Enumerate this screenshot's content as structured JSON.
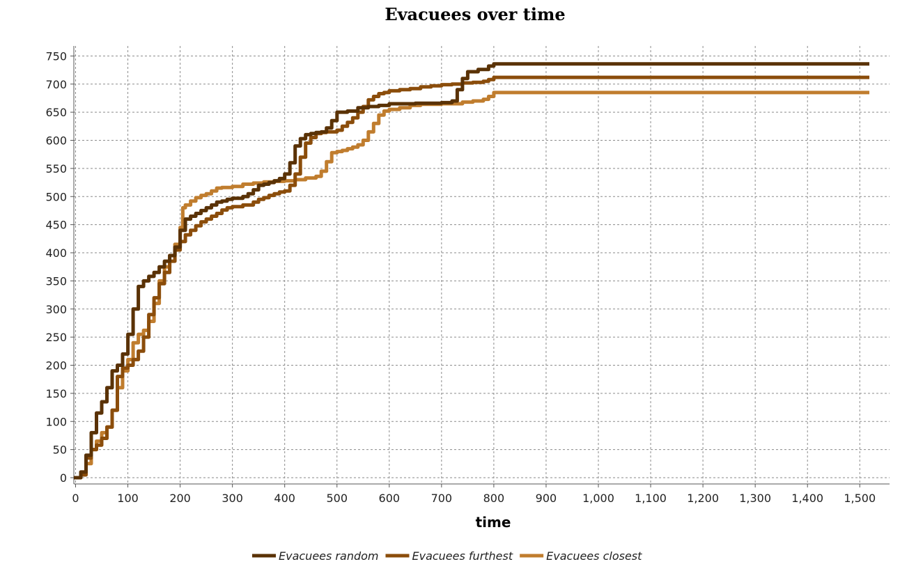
{
  "chart_data": {
    "type": "line",
    "title": "Evacuees over time",
    "xlabel": "time",
    "ylabel": "",
    "xlim": [
      0,
      1550
    ],
    "ylim": [
      0,
      750
    ],
    "grid": true,
    "legend_position": "bottom",
    "x_ticks": [
      {
        "value": 0,
        "label": "0"
      },
      {
        "value": 100,
        "label": "100"
      },
      {
        "value": 200,
        "label": "200"
      },
      {
        "value": 300,
        "label": "300"
      },
      {
        "value": 400,
        "label": "400"
      },
      {
        "value": 500,
        "label": "500"
      },
      {
        "value": 600,
        "label": "600"
      },
      {
        "value": 700,
        "label": "700"
      },
      {
        "value": 800,
        "label": "800"
      },
      {
        "value": 900,
        "label": "900"
      },
      {
        "value": 1000,
        "label": "1,000"
      },
      {
        "value": 1100,
        "label": "1,100"
      },
      {
        "value": 1200,
        "label": "1,200"
      },
      {
        "value": 1300,
        "label": "1,300"
      },
      {
        "value": 1400,
        "label": "1,400"
      },
      {
        "value": 1500,
        "label": "1,500"
      }
    ],
    "y_ticks": [
      {
        "value": 0,
        "label": "0"
      },
      {
        "value": 50,
        "label": "50"
      },
      {
        "value": 100,
        "label": "100"
      },
      {
        "value": 150,
        "label": "150"
      },
      {
        "value": 200,
        "label": "200"
      },
      {
        "value": 250,
        "label": "250"
      },
      {
        "value": 300,
        "label": "300"
      },
      {
        "value": 350,
        "label": "350"
      },
      {
        "value": 400,
        "label": "400"
      },
      {
        "value": 450,
        "label": "450"
      },
      {
        "value": 500,
        "label": "500"
      },
      {
        "value": 550,
        "label": "550"
      },
      {
        "value": 600,
        "label": "600"
      },
      {
        "value": 650,
        "label": "650"
      },
      {
        "value": 700,
        "label": "700"
      },
      {
        "value": 750,
        "label": "750"
      }
    ],
    "series": [
      {
        "name": "Evacuees random",
        "color": "#5a3206",
        "points": [
          [
            0,
            0
          ],
          [
            10,
            10
          ],
          [
            20,
            40
          ],
          [
            30,
            80
          ],
          [
            40,
            115
          ],
          [
            50,
            135
          ],
          [
            60,
            160
          ],
          [
            70,
            190
          ],
          [
            80,
            200
          ],
          [
            90,
            220
          ],
          [
            100,
            255
          ],
          [
            110,
            300
          ],
          [
            120,
            340
          ],
          [
            130,
            350
          ],
          [
            140,
            358
          ],
          [
            150,
            365
          ],
          [
            160,
            375
          ],
          [
            170,
            385
          ],
          [
            180,
            395
          ],
          [
            190,
            410
          ],
          [
            200,
            440
          ],
          [
            210,
            460
          ],
          [
            220,
            465
          ],
          [
            230,
            470
          ],
          [
            240,
            475
          ],
          [
            250,
            480
          ],
          [
            260,
            485
          ],
          [
            270,
            490
          ],
          [
            280,
            492
          ],
          [
            290,
            495
          ],
          [
            300,
            497
          ],
          [
            320,
            500
          ],
          [
            330,
            505
          ],
          [
            340,
            512
          ],
          [
            350,
            520
          ],
          [
            360,
            522
          ],
          [
            370,
            525
          ],
          [
            380,
            528
          ],
          [
            390,
            532
          ],
          [
            400,
            540
          ],
          [
            410,
            560
          ],
          [
            420,
            590
          ],
          [
            430,
            603
          ],
          [
            440,
            610
          ],
          [
            450,
            612
          ],
          [
            460,
            614
          ],
          [
            470,
            615
          ],
          [
            480,
            622
          ],
          [
            490,
            635
          ],
          [
            500,
            650
          ],
          [
            520,
            652
          ],
          [
            540,
            658
          ],
          [
            560,
            660
          ],
          [
            580,
            662
          ],
          [
            600,
            665
          ],
          [
            650,
            666
          ],
          [
            700,
            667
          ],
          [
            720,
            670
          ],
          [
            730,
            690
          ],
          [
            740,
            710
          ],
          [
            750,
            722
          ],
          [
            770,
            726
          ],
          [
            790,
            732
          ],
          [
            800,
            736
          ],
          [
            1515,
            736
          ]
        ]
      },
      {
        "name": "Evacuees furthest",
        "color": "#8b4d0b",
        "points": [
          [
            0,
            0
          ],
          [
            10,
            5
          ],
          [
            20,
            35
          ],
          [
            30,
            50
          ],
          [
            40,
            58
          ],
          [
            50,
            70
          ],
          [
            60,
            90
          ],
          [
            70,
            120
          ],
          [
            80,
            180
          ],
          [
            90,
            195
          ],
          [
            100,
            200
          ],
          [
            110,
            210
          ],
          [
            120,
            225
          ],
          [
            130,
            250
          ],
          [
            140,
            290
          ],
          [
            150,
            320
          ],
          [
            160,
            345
          ],
          [
            170,
            365
          ],
          [
            180,
            385
          ],
          [
            190,
            405
          ],
          [
            200,
            420
          ],
          [
            210,
            432
          ],
          [
            220,
            440
          ],
          [
            230,
            448
          ],
          [
            240,
            455
          ],
          [
            250,
            460
          ],
          [
            260,
            465
          ],
          [
            270,
            470
          ],
          [
            280,
            476
          ],
          [
            290,
            480
          ],
          [
            300,
            482
          ],
          [
            320,
            485
          ],
          [
            340,
            490
          ],
          [
            350,
            495
          ],
          [
            360,
            498
          ],
          [
            370,
            502
          ],
          [
            380,
            505
          ],
          [
            390,
            508
          ],
          [
            400,
            510
          ],
          [
            410,
            520
          ],
          [
            420,
            540
          ],
          [
            430,
            570
          ],
          [
            440,
            595
          ],
          [
            450,
            605
          ],
          [
            460,
            612
          ],
          [
            470,
            614
          ],
          [
            480,
            615
          ],
          [
            500,
            618
          ],
          [
            510,
            625
          ],
          [
            520,
            632
          ],
          [
            530,
            640
          ],
          [
            540,
            650
          ],
          [
            550,
            660
          ],
          [
            560,
            672
          ],
          [
            570,
            678
          ],
          [
            580,
            683
          ],
          [
            590,
            685
          ],
          [
            600,
            688
          ],
          [
            620,
            690
          ],
          [
            640,
            692
          ],
          [
            660,
            695
          ],
          [
            680,
            697
          ],
          [
            700,
            699
          ],
          [
            720,
            700
          ],
          [
            740,
            702
          ],
          [
            760,
            703
          ],
          [
            780,
            705
          ],
          [
            790,
            708
          ],
          [
            800,
            712
          ],
          [
            1515,
            712
          ]
        ]
      },
      {
        "name": "Evacuees closest",
        "color": "#c07d2e",
        "points": [
          [
            0,
            0
          ],
          [
            10,
            10
          ],
          [
            20,
            25
          ],
          [
            30,
            50
          ],
          [
            40,
            65
          ],
          [
            50,
            80
          ],
          [
            60,
            90
          ],
          [
            70,
            120
          ],
          [
            80,
            160
          ],
          [
            90,
            190
          ],
          [
            100,
            210
          ],
          [
            110,
            240
          ],
          [
            120,
            255
          ],
          [
            130,
            262
          ],
          [
            140,
            278
          ],
          [
            150,
            310
          ],
          [
            160,
            350
          ],
          [
            170,
            375
          ],
          [
            180,
            395
          ],
          [
            190,
            415
          ],
          [
            200,
            445
          ],
          [
            205,
            480
          ],
          [
            210,
            485
          ],
          [
            220,
            492
          ],
          [
            230,
            498
          ],
          [
            240,
            502
          ],
          [
            250,
            505
          ],
          [
            260,
            510
          ],
          [
            270,
            515
          ],
          [
            280,
            516
          ],
          [
            300,
            518
          ],
          [
            320,
            522
          ],
          [
            340,
            524
          ],
          [
            360,
            526
          ],
          [
            380,
            527
          ],
          [
            400,
            528
          ],
          [
            420,
            530
          ],
          [
            440,
            533
          ],
          [
            460,
            536
          ],
          [
            470,
            545
          ],
          [
            480,
            562
          ],
          [
            490,
            578
          ],
          [
            500,
            580
          ],
          [
            510,
            582
          ],
          [
            520,
            585
          ],
          [
            530,
            588
          ],
          [
            540,
            592
          ],
          [
            550,
            600
          ],
          [
            560,
            615
          ],
          [
            570,
            630
          ],
          [
            580,
            645
          ],
          [
            590,
            652
          ],
          [
            600,
            655
          ],
          [
            620,
            658
          ],
          [
            640,
            662
          ],
          [
            660,
            664
          ],
          [
            700,
            665
          ],
          [
            720,
            665
          ],
          [
            740,
            668
          ],
          [
            760,
            670
          ],
          [
            780,
            673
          ],
          [
            790,
            678
          ],
          [
            800,
            685
          ],
          [
            1515,
            685
          ]
        ]
      }
    ]
  }
}
